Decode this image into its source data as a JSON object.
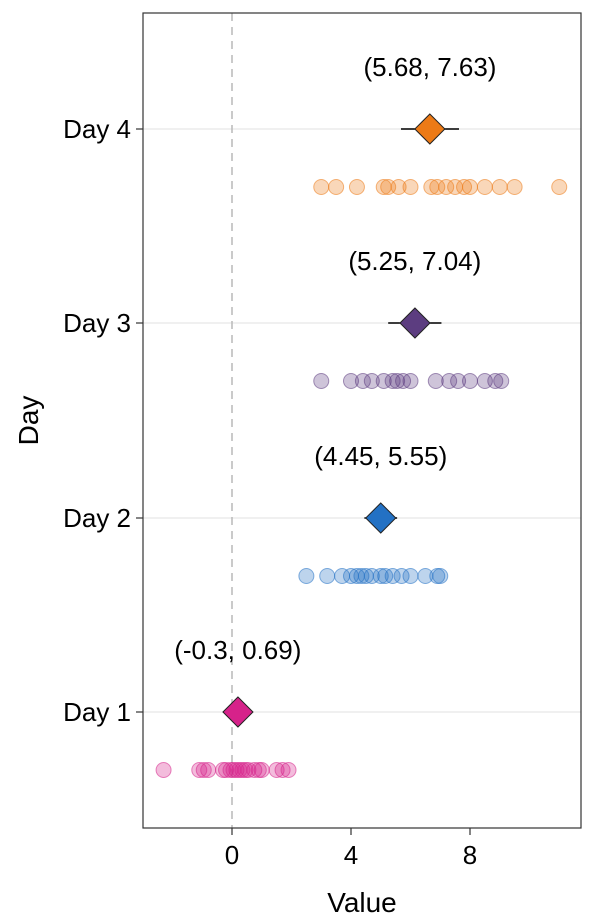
{
  "chart_data": {
    "type": "scatter",
    "title": "",
    "xlabel": "Value",
    "ylabel": "Day",
    "xlim": [
      -2.9,
      11.7
    ],
    "x_ticks": [
      0,
      4,
      8
    ],
    "x_tick_labels": [
      "0",
      "4",
      "8"
    ],
    "reference_line_x": 0,
    "grid": "horizontal major only",
    "legend": "none",
    "groups": [
      {
        "label": "Day 1",
        "color": "#d6228a",
        "mean": 0.2,
        "ci_low": -0.3,
        "ci_high": 0.69,
        "ci_label": "(-0.3, 0.69)",
        "points": [
          -2.3,
          -1.1,
          -0.95,
          -0.8,
          -0.3,
          -0.2,
          -0.05,
          0.05,
          0.15,
          0.25,
          0.35,
          0.45,
          0.55,
          0.75,
          0.9,
          1.0,
          1.5,
          1.7,
          1.9
        ]
      },
      {
        "label": "Day 2",
        "color": "#2371c4",
        "mean": 5.0,
        "ci_low": 4.45,
        "ci_high": 5.55,
        "ci_label": "(4.45, 5.55)",
        "points": [
          2.5,
          3.2,
          3.7,
          4.0,
          4.2,
          4.35,
          4.5,
          4.7,
          5.0,
          5.15,
          5.4,
          5.7,
          6.0,
          6.5,
          6.9,
          7.0
        ]
      },
      {
        "label": "Day 3",
        "color": "#5c3d80",
        "mean": 6.15,
        "ci_low": 5.25,
        "ci_high": 7.04,
        "ci_label": "(5.25, 7.04)",
        "points": [
          3.0,
          4.0,
          4.4,
          4.7,
          5.1,
          5.4,
          5.55,
          5.75,
          6.0,
          6.85,
          7.3,
          7.6,
          8.0,
          8.5,
          8.85,
          9.05
        ]
      },
      {
        "label": "Day 4",
        "color": "#ec7a16",
        "mean": 6.65,
        "ci_low": 5.68,
        "ci_high": 7.63,
        "ci_label": "(5.68, 7.63)",
        "points": [
          3.0,
          3.5,
          4.2,
          5.1,
          5.25,
          5.6,
          6.0,
          6.7,
          6.9,
          7.2,
          7.5,
          7.8,
          8.0,
          8.5,
          9.0,
          9.5,
          11.0
        ]
      }
    ]
  }
}
